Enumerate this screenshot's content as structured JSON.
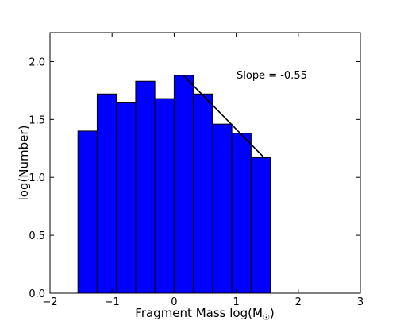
{
  "chart_data": {
    "type": "bar",
    "title": "",
    "xlabel": "Fragment Mass log(M☉)",
    "xlabel_main": "Fragment Mass log(M",
    "xlabel_sub": "☉",
    "xlabel_close": ")",
    "ylabel": "log(Number)",
    "xlim": [
      -2,
      3
    ],
    "ylim": [
      0,
      2.25
    ],
    "x_ticks": [
      -2,
      -1,
      0,
      1,
      2,
      3
    ],
    "x_tick_labels": [
      "−2",
      "−1",
      "0",
      "1",
      "2",
      "3"
    ],
    "y_ticks": [
      0,
      0.5,
      1,
      1.5,
      2
    ],
    "y_tick_labels": [
      "0.0",
      "0.5",
      "1.0",
      "1.5",
      "2.0"
    ],
    "grid": false,
    "bar_color": "#0000ff",
    "bin_edges": [
      -1.55,
      -1.24,
      -0.93,
      -0.62,
      -0.31,
      0.0,
      0.31,
      0.62,
      0.93,
      1.24,
      1.55
    ],
    "values": [
      1.4,
      1.72,
      1.65,
      1.83,
      1.68,
      1.88,
      1.72,
      1.46,
      1.38,
      1.17
    ],
    "fit_line": {
      "x": [
        0.15,
        1.45
      ],
      "y": [
        1.88,
        1.17
      ]
    },
    "annotation": "Slope = -0.55"
  }
}
